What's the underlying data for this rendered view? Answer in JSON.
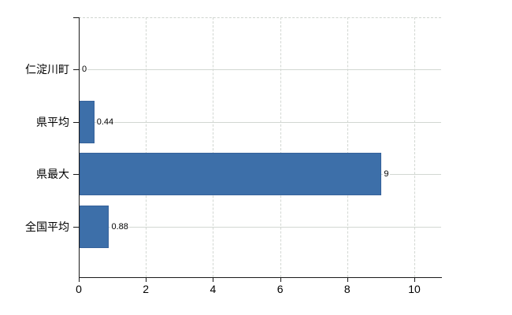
{
  "chart_data": {
    "type": "bar",
    "orientation": "horizontal",
    "title": "",
    "xlabel": "",
    "ylabel": "",
    "categories": [
      "仁淀川町",
      "県平均",
      "県最大",
      "全国平均"
    ],
    "values": [
      0,
      0.44,
      9,
      0.88
    ],
    "value_labels": [
      "0",
      "0.44",
      "9",
      "0.88"
    ],
    "x_ticks": [
      "0",
      "2",
      "4",
      "6",
      "8",
      "10"
    ],
    "x_tick_values": [
      0,
      2,
      4,
      6,
      8,
      10
    ],
    "xlim": [
      0,
      10.8
    ],
    "grid": true,
    "legend": false,
    "bar_color": "#3d6fa9",
    "bar_border_color": "#36629b",
    "grid_color": "#d2d7d2",
    "axis_color": "#1a1a1a",
    "text_color": "#000000",
    "background_color": "#ffffff"
  }
}
